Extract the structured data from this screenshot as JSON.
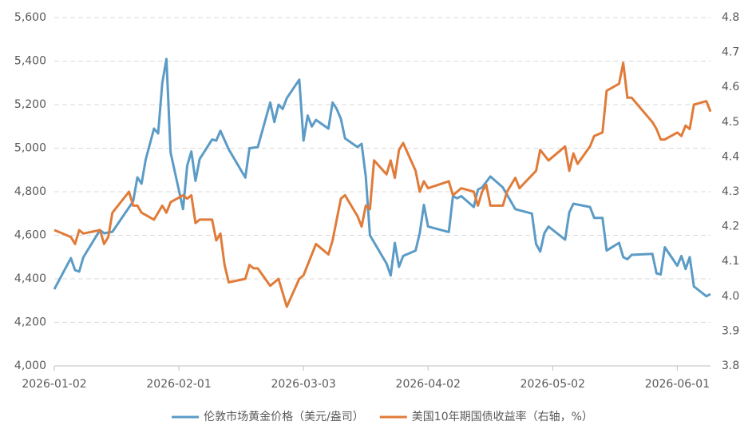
{
  "chart_data": {
    "type": "line",
    "xlim": [
      "2026-01-02",
      "2026-06-09"
    ],
    "xticks": [
      "2026-01-02",
      "2026-02-01",
      "2026-03-03",
      "2026-04-02",
      "2026-05-02",
      "2026-06-01"
    ],
    "ylim": [
      4000,
      5600
    ],
    "yticks": [
      {
        "value": 4000,
        "label": "4,000"
      },
      {
        "value": 4200,
        "label": "4,200"
      },
      {
        "value": 4400,
        "label": "4,400"
      },
      {
        "value": 4600,
        "label": "4,600"
      },
      {
        "value": 4800,
        "label": "4,800"
      },
      {
        "value": 5000,
        "label": "5,000"
      },
      {
        "value": 5200,
        "label": "5,200"
      },
      {
        "value": 5400,
        "label": "5,400"
      },
      {
        "value": 5600,
        "label": "5,600"
      }
    ],
    "y2lim": [
      3.8,
      4.8
    ],
    "y2ticks": [
      3.8,
      3.9,
      {
        "value": 4,
        "label": "4.0"
      },
      4.1,
      4.2,
      4.3,
      4.4,
      4.5,
      4.6,
      4.7,
      4.8
    ],
    "grid": true,
    "legend": "bottom",
    "series": [
      {
        "name": "伦敦市场黄金价格（美元/盎司）",
        "color": "#5b9bc6",
        "x": [
          "2026-01-02",
          "2026-01-06",
          "2026-01-07",
          "2026-01-08",
          "2026-01-09",
          "2026-01-13",
          "2026-01-14",
          "2026-01-16",
          "2026-01-21",
          "2026-01-22",
          "2026-01-23",
          "2026-01-24",
          "2026-01-26",
          "2026-01-27",
          "2026-01-28",
          "2026-01-29",
          "2026-01-30",
          "2026-02-02",
          "2026-02-03",
          "2026-02-04",
          "2026-02-05",
          "2026-02-06",
          "2026-02-09",
          "2026-02-10",
          "2026-02-11",
          "2026-02-13",
          "2026-02-17",
          "2026-02-18",
          "2026-02-20",
          "2026-02-23",
          "2026-02-24",
          "2026-02-25",
          "2026-02-26",
          "2026-02-27",
          "2026-03-02",
          "2026-03-03",
          "2026-03-04",
          "2026-03-05",
          "2026-03-06",
          "2026-03-09",
          "2026-03-10",
          "2026-03-11",
          "2026-03-12",
          "2026-03-13",
          "2026-03-16",
          "2026-03-17",
          "2026-03-18",
          "2026-03-19",
          "2026-03-23",
          "2026-03-24",
          "2026-03-25",
          "2026-03-26",
          "2026-03-27",
          "2026-03-30",
          "2026-03-31",
          "2026-04-01",
          "2026-04-02",
          "2026-04-07",
          "2026-04-08",
          "2026-04-09",
          "2026-04-10",
          "2026-04-13",
          "2026-04-14",
          "2026-04-15",
          "2026-04-17",
          "2026-04-20",
          "2026-04-23",
          "2026-04-27",
          "2026-04-28",
          "2026-04-29",
          "2026-04-30",
          "2026-05-01",
          "2026-05-05",
          "2026-05-06",
          "2026-05-07",
          "2026-05-11",
          "2026-05-12",
          "2026-05-14",
          "2026-05-15",
          "2026-05-18",
          "2026-05-19",
          "2026-05-20",
          "2026-05-21",
          "2026-05-26",
          "2026-05-27",
          "2026-05-28",
          "2026-05-29",
          "2026-06-01",
          "2026-06-02",
          "2026-06-03",
          "2026-06-04",
          "2026-06-05",
          "2026-06-08",
          "2026-06-09"
        ],
        "values": [
          4352,
          4495,
          4440,
          4433,
          4499,
          4624,
          4609,
          4616,
          4756,
          4866,
          4837,
          4947,
          5090,
          5068,
          5300,
          5410,
          4980,
          4720,
          4920,
          4985,
          4850,
          4950,
          5040,
          5035,
          5080,
          4995,
          4865,
          5000,
          5005,
          5210,
          5120,
          5200,
          5180,
          5230,
          5315,
          5035,
          5150,
          5100,
          5130,
          5090,
          5210,
          5180,
          5135,
          5045,
          5005,
          5020,
          4870,
          4600,
          4470,
          4415,
          4565,
          4455,
          4505,
          4530,
          4610,
          4740,
          4640,
          4615,
          4780,
          4770,
          4780,
          4730,
          4810,
          4820,
          4870,
          4820,
          4720,
          4700,
          4560,
          4525,
          4610,
          4640,
          4580,
          4705,
          4745,
          4730,
          4680,
          4680,
          4530,
          4565,
          4500,
          4490,
          4510,
          4515,
          4425,
          4420,
          4545,
          4460,
          4505,
          4445,
          4500,
          4365,
          4320,
          4330
        ]
      },
      {
        "name": "美国10年期国债收益率（右轴，%）",
        "color": "#e07b39",
        "axis": "y2",
        "x": [
          "2026-01-02",
          "2026-01-04",
          "2026-01-06",
          "2026-01-07",
          "2026-01-08",
          "2026-01-09",
          "2026-01-13",
          "2026-01-14",
          "2026-01-15",
          "2026-01-16",
          "2026-01-20",
          "2026-01-21",
          "2026-01-22",
          "2026-01-23",
          "2026-01-26",
          "2026-01-28",
          "2026-01-29",
          "2026-01-30",
          "2026-02-02",
          "2026-02-03",
          "2026-02-04",
          "2026-02-05",
          "2026-02-06",
          "2026-02-09",
          "2026-02-10",
          "2026-02-11",
          "2026-02-12",
          "2026-02-13",
          "2026-02-17",
          "2026-02-18",
          "2026-02-19",
          "2026-02-20",
          "2026-02-23",
          "2026-02-24",
          "2026-02-25",
          "2026-02-26",
          "2026-02-27",
          "2026-03-02",
          "2026-03-03",
          "2026-03-06",
          "2026-03-07",
          "2026-03-09",
          "2026-03-10",
          "2026-03-12",
          "2026-03-13",
          "2026-03-16",
          "2026-03-17",
          "2026-03-18",
          "2026-03-19",
          "2026-03-20",
          "2026-03-23",
          "2026-03-24",
          "2026-03-25",
          "2026-03-26",
          "2026-03-27",
          "2026-03-30",
          "2026-03-31",
          "2026-04-01",
          "2026-04-02",
          "2026-04-07",
          "2026-04-08",
          "2026-04-09",
          "2026-04-10",
          "2026-04-13",
          "2026-04-14",
          "2026-04-15",
          "2026-04-16",
          "2026-04-17",
          "2026-04-20",
          "2026-04-21",
          "2026-04-23",
          "2026-04-24",
          "2026-04-28",
          "2026-04-29",
          "2026-05-01",
          "2026-05-05",
          "2026-05-06",
          "2026-05-07",
          "2026-05-08",
          "2026-05-11",
          "2026-05-12",
          "2026-05-14",
          "2026-05-15",
          "2026-05-18",
          "2026-05-19",
          "2026-05-20",
          "2026-05-21",
          "2026-05-26",
          "2026-05-27",
          "2026-05-28",
          "2026-05-29",
          "2026-06-01",
          "2026-06-02",
          "2026-06-03",
          "2026-06-04",
          "2026-06-05",
          "2026-06-08",
          "2026-06-09"
        ],
        "values": [
          4.19,
          4.18,
          4.17,
          4.15,
          4.19,
          4.18,
          4.19,
          4.15,
          4.17,
          4.24,
          4.3,
          4.26,
          4.26,
          4.24,
          4.22,
          4.26,
          4.24,
          4.27,
          4.29,
          4.28,
          4.29,
          4.21,
          4.22,
          4.22,
          4.16,
          4.18,
          4.09,
          4.04,
          4.05,
          4.09,
          4.08,
          4.08,
          4.03,
          4.04,
          4.05,
          4.01,
          3.97,
          4.05,
          4.06,
          4.15,
          4.14,
          4.12,
          4.16,
          4.28,
          4.29,
          4.23,
          4.2,
          4.26,
          4.25,
          4.39,
          4.35,
          4.39,
          4.34,
          4.42,
          4.44,
          4.36,
          4.3,
          4.33,
          4.31,
          4.33,
          4.29,
          4.3,
          4.31,
          4.3,
          4.26,
          4.3,
          4.32,
          4.26,
          4.26,
          4.3,
          4.34,
          4.31,
          4.36,
          4.42,
          4.39,
          4.43,
          4.36,
          4.41,
          4.38,
          4.43,
          4.46,
          4.47,
          4.59,
          4.61,
          4.67,
          4.57,
          4.57,
          4.5,
          4.48,
          4.45,
          4.45,
          4.47,
          4.46,
          4.49,
          4.48,
          4.55,
          4.56,
          4.53
        ]
      }
    ]
  }
}
